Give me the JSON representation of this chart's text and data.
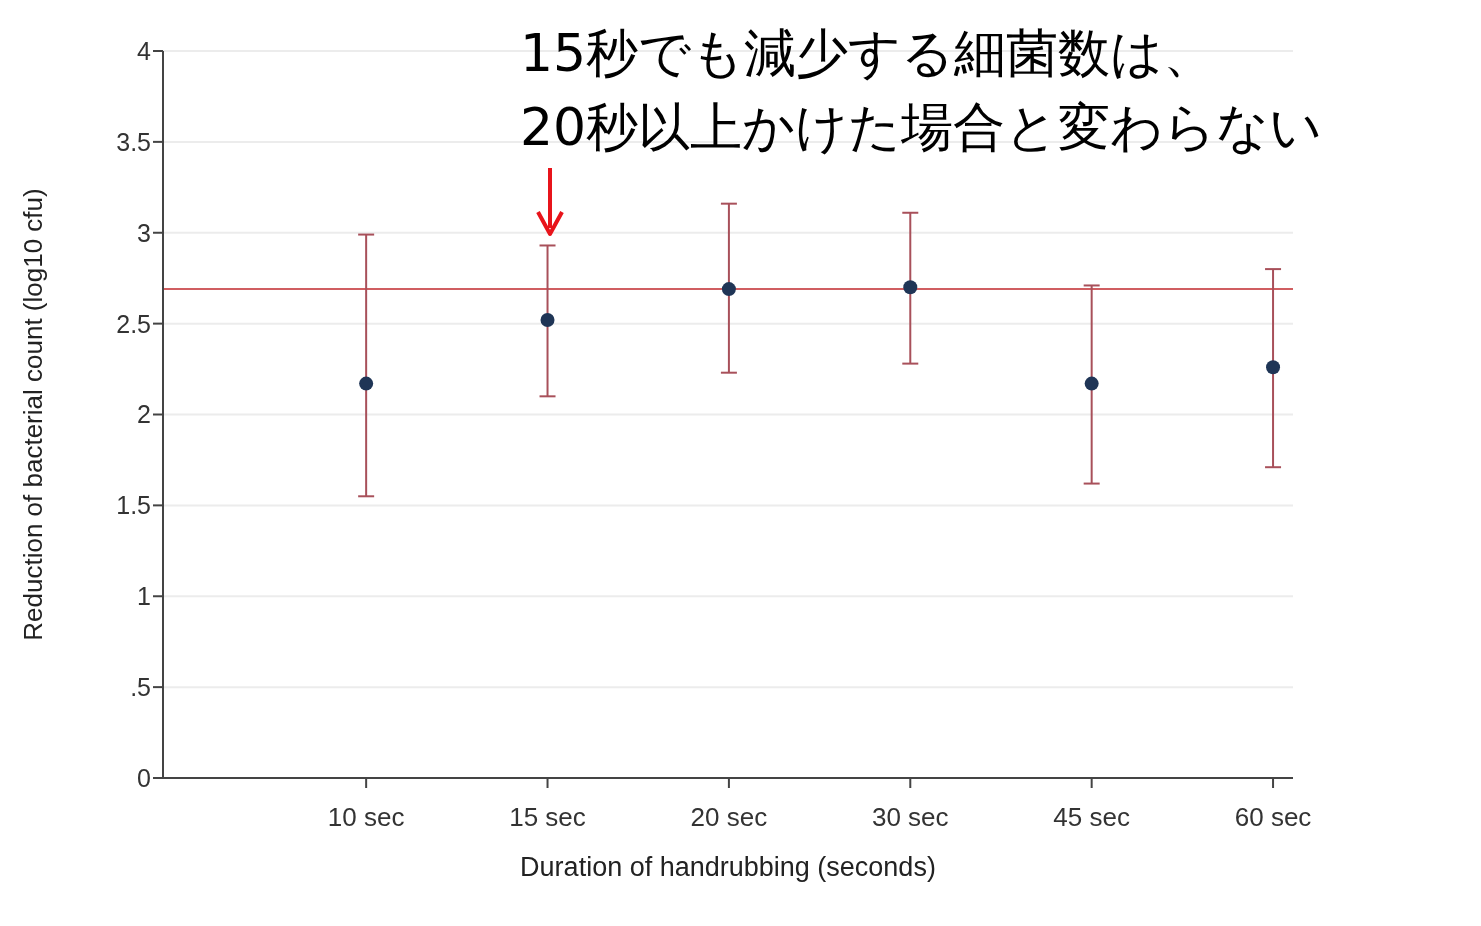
{
  "chart_data": {
    "type": "scatter",
    "xlabel": "Duration of handrubbing (seconds)",
    "ylabel": "Reduction of bacterial count (log10 cfu)",
    "categories": [
      "10 sec",
      "15 sec",
      "20 sec",
      "30 sec",
      "45 sec",
      "60 sec"
    ],
    "series": [
      {
        "color": "#1f3556",
        "values": [
          2.17,
          2.52,
          2.69,
          2.7,
          2.17,
          2.26
        ],
        "errors": [
          [
            1.55,
            2.99
          ],
          [
            2.1,
            2.93
          ],
          [
            2.23,
            3.16
          ],
          [
            2.28,
            3.11
          ],
          [
            1.62,
            2.71
          ],
          [
            1.71,
            2.8
          ]
        ]
      }
    ],
    "ylim": [
      0,
      4
    ],
    "yticks": [
      0,
      {
        "value": 0.5,
        "label": ".5"
      },
      1,
      1.5,
      2,
      2.5,
      3,
      3.5,
      4
    ],
    "grid": "y",
    "marker": "circle",
    "ref_lines": [
      {
        "axis": "y",
        "value": 2.69,
        "color": "#c0282d"
      }
    ],
    "annotations": [
      "15秒でも減少する細菌数は、\n20秒以上かけた場合と変わらない"
    ]
  }
}
